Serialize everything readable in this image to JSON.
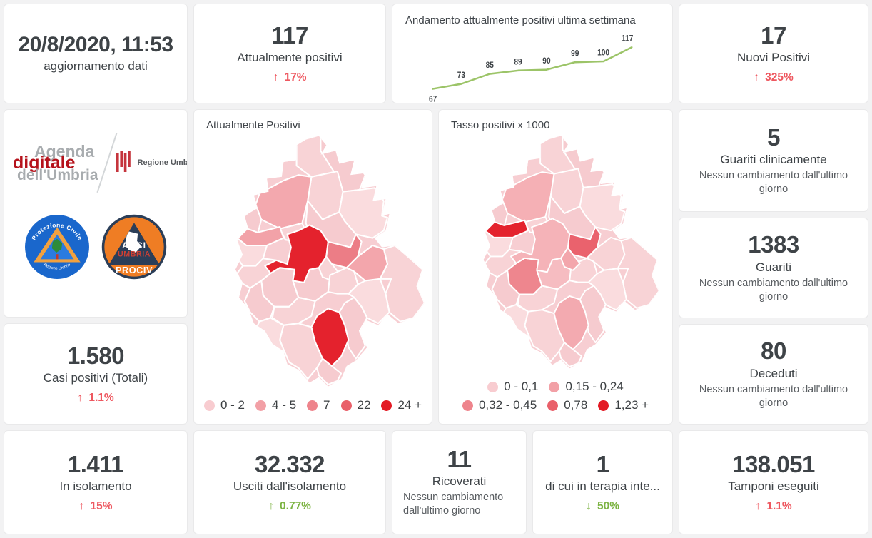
{
  "colors": {
    "trend_red": "#ee5860",
    "trend_green": "#7cb342",
    "chart_line": "#9cc468",
    "map_base": "#f7ced2",
    "map_red": "#e4222d"
  },
  "cards": {
    "updated": {
      "title": "20/8/2020, 11:53",
      "subtitle": "aggiornamento dati"
    },
    "attualmente_positivi": {
      "value": "117",
      "label": "Attualmente positivi",
      "trend": {
        "dir": "up",
        "color": "red",
        "text": "17%"
      }
    },
    "nuovi_positivi": {
      "value": "17",
      "label": "Nuovi Positivi",
      "trend": {
        "dir": "up",
        "color": "red",
        "text": "325%"
      }
    },
    "guariti_clinicamente": {
      "value": "5",
      "label": "Guariti clinicamente",
      "sub": "Nessun cambiamento dall'ultimo giorno"
    },
    "guariti": {
      "value": "1383",
      "label": "Guariti",
      "sub": "Nessun cambiamento dall'ultimo giorno"
    },
    "casi_positivi": {
      "value": "1.580",
      "label": "Casi positivi (Totali)",
      "trend": {
        "dir": "up",
        "color": "red",
        "text": "1.1%"
      }
    },
    "deceduti": {
      "value": "80",
      "label": "Deceduti",
      "sub": "Nessun cambiamento dall'ultimo giorno"
    },
    "in_isolamento": {
      "value": "1.411",
      "label": "In isolamento",
      "trend": {
        "dir": "up",
        "color": "red",
        "text": "15%"
      }
    },
    "usciti_isolamento": {
      "value": "32.332",
      "label": "Usciti dall'isolamento",
      "trend": {
        "dir": "up",
        "color": "green",
        "text": "0.77%"
      }
    },
    "ricoverati": {
      "value": "11",
      "label": "Ricoverati",
      "sub": "Nessun cambiamento dall'ultimo giorno"
    },
    "terapia_intensiva": {
      "value": "1",
      "label": "di cui in terapia inte...",
      "trend": {
        "dir": "down",
        "color": "green",
        "text": "50%"
      }
    },
    "tamponi": {
      "value": "138.051",
      "label": "Tamponi eseguiti",
      "trend": {
        "dir": "up",
        "color": "red",
        "text": "1.1%"
      }
    }
  },
  "chart_data": {
    "type": "line",
    "title": "Andamento attualmente positivi ultima settimana",
    "x": [
      1,
      2,
      3,
      4,
      5,
      6,
      7,
      8
    ],
    "values": [
      67,
      73,
      85,
      89,
      90,
      99,
      100,
      117
    ],
    "line_color": "#9cc468",
    "point_labels_shown": true,
    "xlabel": "",
    "ylabel": "",
    "ylim": [
      60,
      125
    ],
    "grid": false,
    "legend_position": "none"
  },
  "maps": [
    {
      "title": "Attualmente Positivi",
      "legend": [
        {
          "label": "0 - 2",
          "color": "#f8ccd0"
        },
        {
          "label": "4 - 5",
          "color": "#f2a0a6"
        },
        {
          "label": "7",
          "color": "#ee848c"
        },
        {
          "label": "22",
          "color": "#e9606a"
        },
        {
          "label": "24 +",
          "color": "#e31a24"
        }
      ],
      "highlights": {
        "A1": "#f3a8ae",
        "Wstrip": "#f2a2a8",
        "PG": "#e4222d",
        "C3": "#ec7d86",
        "C4": "#f3a6ac",
        "E3": "#e4222d"
      }
    },
    {
      "title": "Tasso positivi x 1000",
      "legend": [
        {
          "label": "0 - 0,1",
          "color": "#f8ccd0"
        },
        {
          "label": "0,15 - 0,24",
          "color": "#f2a0a6"
        },
        {
          "label": "0,32 - 0,45",
          "color": "#ee848c"
        },
        {
          "label": "0,78",
          "color": "#e9606a"
        },
        {
          "label": "1,23 +",
          "color": "#e31a24"
        }
      ],
      "highlights": {
        "A1": "#f5b0b5",
        "Wstrip": "#e4222d",
        "PG": "#f5b3b8",
        "C3": "#ea626d",
        "CW": "#ee868e",
        "sm1": "#f3a6ac",
        "E3": "#f3aab0",
        "D2": "#f6bcc1"
      }
    }
  ],
  "logos": {
    "agenda_line1": "Agenda",
    "agenda_line2": "digitale",
    "agenda_line3": "dell'Umbria",
    "regione": "Regione Umbria",
    "pc_top": "Protezione Civile",
    "pc_bottom": "Regione Umbria",
    "anci_line1": "ANCI",
    "anci_line2": "UMBRIA",
    "anci_line3": "PROCIV"
  }
}
